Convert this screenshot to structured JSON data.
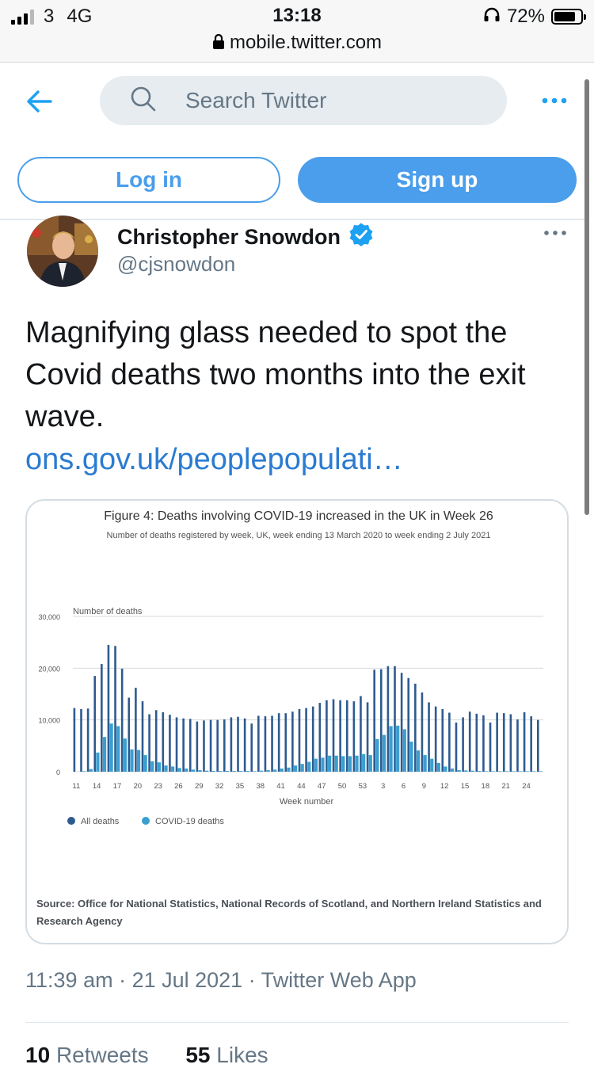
{
  "status_bar": {
    "carrier": "3",
    "network": "4G",
    "time": "13:18",
    "battery_percent": "72%",
    "battery_level": 0.72,
    "url": "mobile.twitter.com"
  },
  "header": {
    "search_placeholder": "Search Twitter",
    "login_label": "Log in",
    "signup_label": "Sign up"
  },
  "tweet": {
    "author_name": "Christopher Snowdon",
    "author_handle": "@cjsnowdon",
    "verified": true,
    "text": "Magnifying glass needed to spot the Covid deaths two months into the exit wave.",
    "link_text": "ons.gov.uk/peoplepopulati…",
    "timestamp": "11:39 am · 21 Jul 2021 · Twitter Web App",
    "retweets_count": "10",
    "retweets_label": "Retweets",
    "likes_count": "55",
    "likes_label": "Likes"
  },
  "colors": {
    "accent": "#4a9eeb",
    "link": "#2b7bd1",
    "all_deaths": "#2e5b8f",
    "covid_deaths": "#3a9fd0"
  },
  "chart_data": {
    "type": "bar",
    "title": "Figure 4: Deaths involving COVID-19 increased in the UK in Week 26",
    "subtitle": "Number of deaths registered by week, UK, week ending 13 March 2020 to week ending 2 July 2021",
    "ylabel": "Number of deaths",
    "xlabel": "Week number",
    "ylim": [
      0,
      30000
    ],
    "yticks": [
      0,
      10000,
      20000,
      30000
    ],
    "ytick_labels": [
      "0",
      "10,000",
      "20,000",
      "30,000"
    ],
    "xtick_labels": [
      "11",
      "14",
      "17",
      "20",
      "23",
      "26",
      "29",
      "32",
      "35",
      "38",
      "41",
      "44",
      "47",
      "50",
      "53",
      "3",
      "6",
      "9",
      "12",
      "15",
      "18",
      "21",
      "24"
    ],
    "categories": [
      "11",
      "12",
      "13",
      "14",
      "15",
      "16",
      "17",
      "18",
      "19",
      "20",
      "21",
      "22",
      "23",
      "24",
      "25",
      "26",
      "27",
      "28",
      "29",
      "30",
      "31",
      "32",
      "33",
      "34",
      "35",
      "36",
      "37",
      "38",
      "39",
      "40",
      "41",
      "42",
      "43",
      "44",
      "45",
      "46",
      "47",
      "48",
      "49",
      "50",
      "51",
      "52",
      "53",
      "1",
      "2",
      "3",
      "4",
      "5",
      "6",
      "7",
      "8",
      "9",
      "10",
      "11",
      "12",
      "13",
      "14",
      "15",
      "16",
      "17",
      "18",
      "19",
      "20",
      "21",
      "22",
      "23",
      "24",
      "25",
      "26"
    ],
    "series": [
      {
        "name": "All deaths",
        "values": [
          12300,
          12100,
          12200,
          18500,
          20800,
          24500,
          24300,
          19900,
          14300,
          16200,
          13600,
          11100,
          11900,
          11500,
          11000,
          10500,
          10300,
          10200,
          9700,
          9900,
          10000,
          10000,
          10100,
          10500,
          10600,
          10300,
          9300,
          10800,
          10700,
          10800,
          11300,
          11300,
          11600,
          12100,
          12300,
          12600,
          13300,
          13800,
          14000,
          13800,
          13800,
          13600,
          14600,
          13400,
          19700,
          19800,
          20400,
          20400,
          19100,
          18100,
          17000,
          15300,
          13400,
          12600,
          12100,
          11400,
          9500,
          10500,
          11600,
          11200,
          10900,
          9500,
          11400,
          11300,
          11100,
          10100,
          11500,
          10700,
          10000
        ]
      },
      {
        "name": "COVID-19 deaths",
        "values": [
          0,
          100,
          500,
          3700,
          6700,
          9300,
          8800,
          6400,
          4300,
          4200,
          3200,
          2000,
          1800,
          1200,
          1000,
          700,
          600,
          400,
          300,
          200,
          150,
          150,
          150,
          150,
          150,
          150,
          100,
          200,
          300,
          400,
          600,
          800,
          1200,
          1500,
          1900,
          2500,
          2700,
          3100,
          3100,
          3000,
          3000,
          3100,
          3400,
          3200,
          6300,
          7100,
          8800,
          8900,
          8200,
          5800,
          4100,
          3200,
          2500,
          1700,
          1000,
          600,
          300,
          250,
          200,
          150,
          100,
          100,
          100,
          100,
          100,
          100,
          100,
          100,
          100
        ]
      }
    ],
    "source": "Source: Office for National Statistics, National Records of Scotland, and Northern Ireland Statistics and Research Agency"
  }
}
